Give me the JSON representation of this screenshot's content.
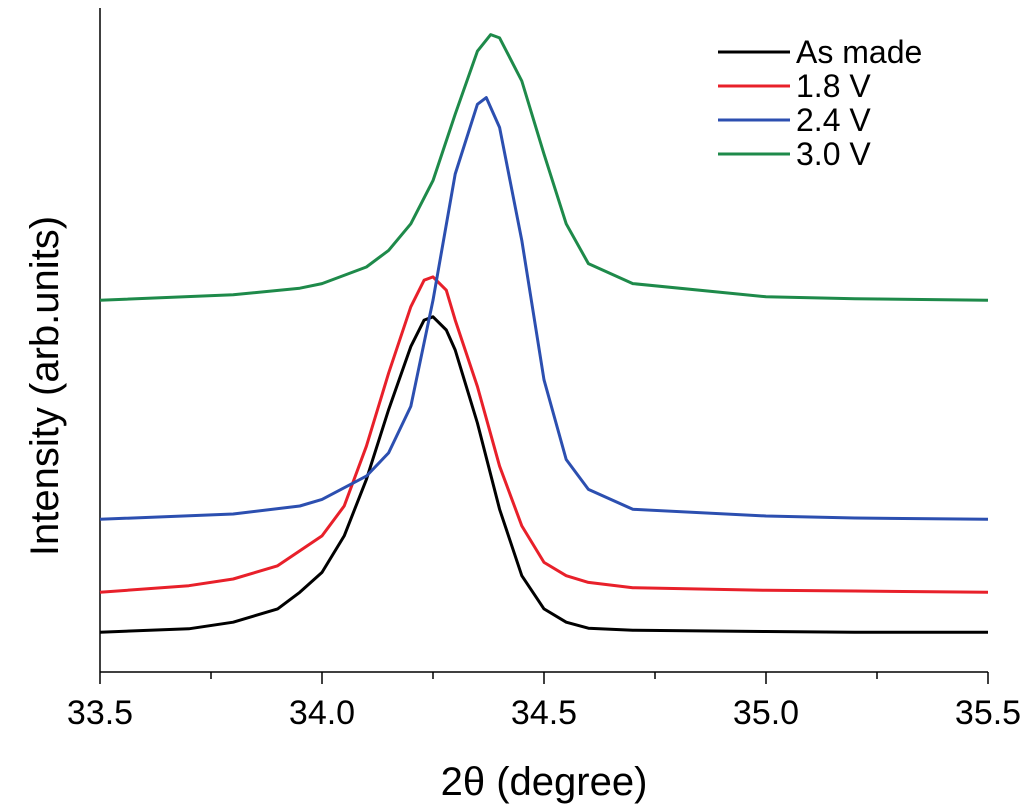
{
  "chart_data": {
    "type": "line",
    "title": "",
    "xlabel": "2θ  (degree)",
    "ylabel": "Intensity (arb.units)",
    "xlim": [
      33.5,
      35.5
    ],
    "ylim": [
      0,
      100
    ],
    "xticks": [
      33.5,
      34.0,
      34.5,
      35.0,
      35.5
    ],
    "xtick_labels": [
      "33.5",
      "34.0",
      "34.5",
      "35.0",
      "35.5"
    ],
    "y_ticks_shown": false,
    "grid": false,
    "legend_position": "top-right",
    "series": [
      {
        "name": "As made",
        "color": "#000000",
        "x": [
          33.5,
          33.7,
          33.8,
          33.9,
          33.95,
          34.0,
          34.05,
          34.1,
          34.15,
          34.2,
          34.23,
          34.25,
          34.28,
          34.3,
          34.35,
          34.4,
          34.45,
          34.5,
          34.55,
          34.6,
          34.7,
          35.0,
          35.2,
          35.5
        ],
        "y": [
          6.0,
          6.5,
          7.5,
          9.5,
          12.0,
          15.0,
          20.5,
          29.0,
          39.5,
          49.0,
          53.0,
          53.5,
          51.5,
          48.5,
          37.5,
          24.5,
          14.5,
          9.5,
          7.5,
          6.6,
          6.3,
          6.1,
          6.0,
          6.0
        ]
      },
      {
        "name": "1.8 V",
        "color": "#e8202a",
        "x": [
          33.5,
          33.7,
          33.8,
          33.9,
          34.0,
          34.05,
          34.1,
          34.15,
          34.2,
          34.23,
          34.25,
          34.28,
          34.3,
          34.35,
          34.4,
          34.45,
          34.5,
          34.55,
          34.6,
          34.7,
          35.0,
          35.2,
          35.5
        ],
        "y": [
          12.0,
          13.0,
          14.0,
          16.0,
          20.5,
          25.0,
          34.0,
          45.0,
          55.0,
          59.0,
          59.5,
          57.5,
          53.0,
          43.0,
          31.0,
          22.0,
          16.5,
          14.5,
          13.5,
          12.7,
          12.3,
          12.2,
          12.0
        ]
      },
      {
        "name": "2.4 V",
        "color": "#2c4fb0",
        "x": [
          33.5,
          33.8,
          33.95,
          34.0,
          34.1,
          34.15,
          34.2,
          34.25,
          34.3,
          34.35,
          34.37,
          34.4,
          34.45,
          34.5,
          34.55,
          34.6,
          34.7,
          35.0,
          35.2,
          35.5
        ],
        "y": [
          23.0,
          23.8,
          25.0,
          26.0,
          29.5,
          33.0,
          40.0,
          56.0,
          75.0,
          85.5,
          86.5,
          82.0,
          65.0,
          44.0,
          32.0,
          27.5,
          24.5,
          23.5,
          23.2,
          23.0
        ]
      },
      {
        "name": "3.0 V",
        "color": "#1e8a4a",
        "x": [
          33.5,
          33.8,
          33.95,
          34.0,
          34.1,
          34.15,
          34.2,
          34.25,
          34.3,
          34.35,
          34.38,
          34.4,
          34.45,
          34.5,
          34.55,
          34.6,
          34.7,
          35.0,
          35.2,
          35.5
        ],
        "y": [
          56.0,
          56.8,
          57.8,
          58.5,
          61.0,
          63.5,
          67.5,
          74.0,
          84.0,
          93.5,
          96.0,
          95.5,
          89.0,
          78.0,
          67.5,
          61.5,
          58.5,
          56.5,
          56.2,
          56.0
        ]
      }
    ]
  }
}
